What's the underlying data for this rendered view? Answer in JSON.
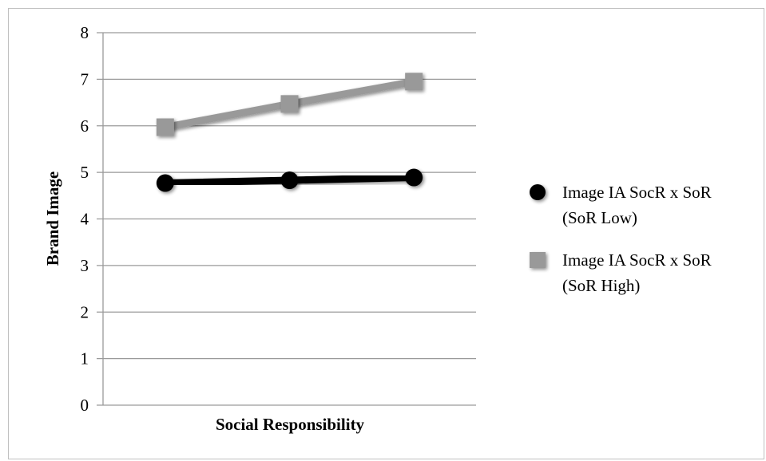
{
  "chart_data": {
    "type": "line",
    "x": [
      1,
      2,
      3
    ],
    "xlabel": "Social Responsibility",
    "ylabel": "Brand Image",
    "ylim": [
      0,
      8
    ],
    "yticks": [
      "0",
      "1",
      "2",
      "3",
      "4",
      "5",
      "6",
      "7",
      "8"
    ],
    "grid": true,
    "legend_position": "right",
    "series": [
      {
        "name": "Image IA SocR x SoR (SoR Low)",
        "name_lines": [
          "Image IA SocR x SoR",
          "(SoR Low)"
        ],
        "values": [
          4.77,
          4.83,
          4.89
        ],
        "color": "#000000",
        "marker": "circle"
      },
      {
        "name": "Image IA SocR x SoR (SoR High)",
        "name_lines": [
          "Image IA SocR x SoR",
          "(SoR High)"
        ],
        "values": [
          5.97,
          6.47,
          6.95
        ],
        "color": "#999999",
        "marker": "square"
      }
    ]
  }
}
